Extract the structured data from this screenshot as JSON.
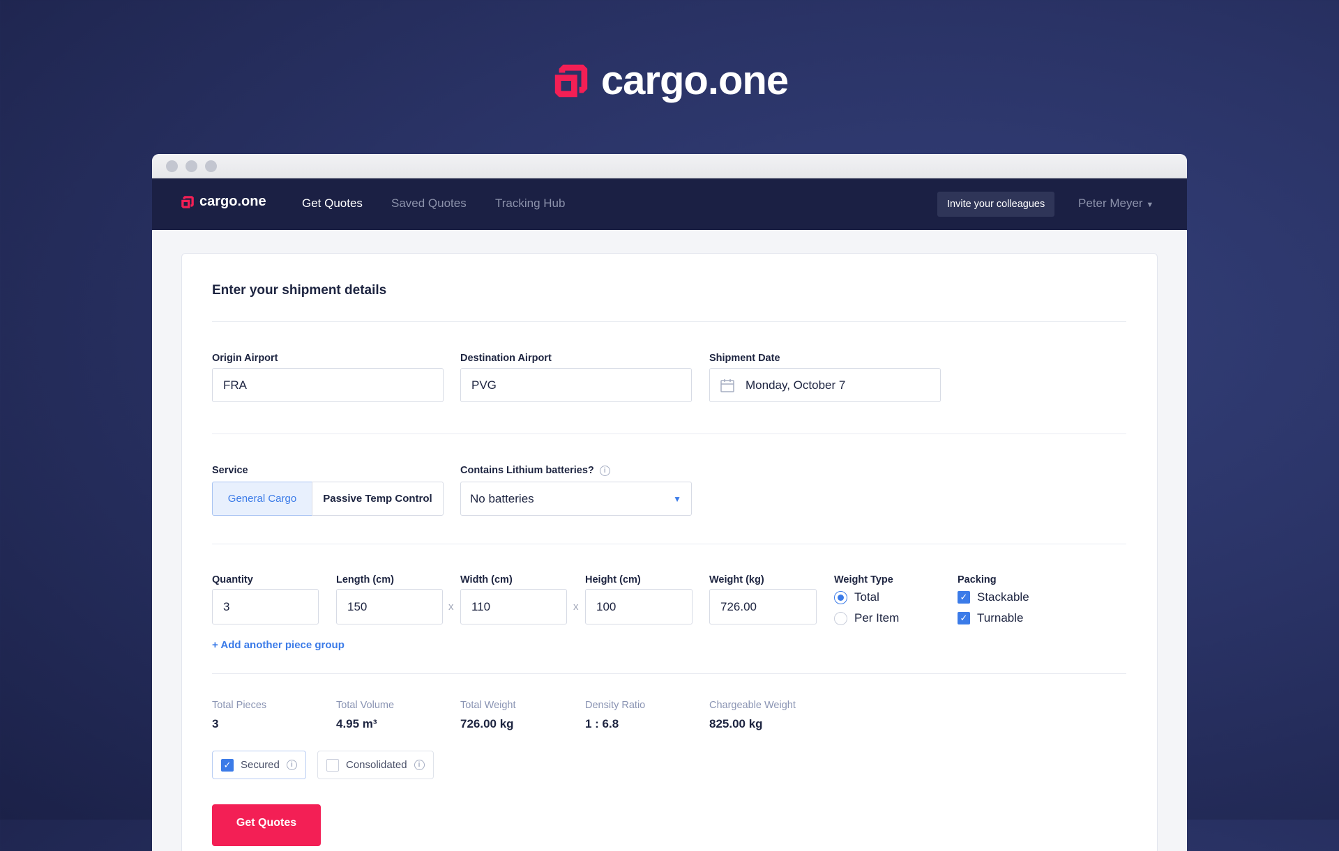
{
  "brand": {
    "name": "cargo.one",
    "accent": "#f31f55"
  },
  "nav": {
    "links": [
      "Get Quotes",
      "Saved Quotes",
      "Tracking Hub"
    ],
    "invite": "Invite your colleagues",
    "user": "Peter Meyer"
  },
  "form": {
    "title": "Enter your shipment details",
    "origin": {
      "label": "Origin Airport",
      "value": "FRA"
    },
    "destination": {
      "label": "Destination Airport",
      "value": "PVG"
    },
    "date": {
      "label": "Shipment Date",
      "value": "Monday, October 7"
    },
    "service": {
      "label": "Service",
      "options": [
        "General Cargo",
        "Passive Temp Control"
      ],
      "selected": "General Cargo"
    },
    "lithium": {
      "label": "Contains Lithium batteries?",
      "value": "No batteries"
    },
    "pieces": {
      "quantity": {
        "label": "Quantity",
        "value": "3"
      },
      "length": {
        "label": "Length (cm)",
        "value": "150"
      },
      "width": {
        "label": "Width (cm)",
        "value": "110"
      },
      "height": {
        "label": "Height (cm)",
        "value": "100"
      },
      "weight": {
        "label": "Weight (kg)",
        "value": "726.00"
      },
      "sep": "x",
      "weight_type": {
        "label": "Weight Type",
        "options": [
          "Total",
          "Per Item"
        ],
        "selected": "Total"
      },
      "packing": {
        "label": "Packing",
        "options": [
          "Stackable",
          "Turnable"
        ],
        "checked": [
          true,
          true
        ]
      },
      "add": "+ Add another piece group"
    },
    "totals": [
      {
        "label": "Total Pieces",
        "value": "3"
      },
      {
        "label": "Total Volume",
        "value": "4.95 m³"
      },
      {
        "label": "Total Weight",
        "value": "726.00 kg"
      },
      {
        "label": "Density Ratio",
        "value": "1 : 6.8"
      },
      {
        "label": "Chargeable Weight",
        "value": "825.00 kg"
      }
    ],
    "flags": [
      {
        "label": "Secured",
        "checked": true
      },
      {
        "label": "Consolidated",
        "checked": false
      }
    ],
    "submit": "Get Quotes"
  }
}
